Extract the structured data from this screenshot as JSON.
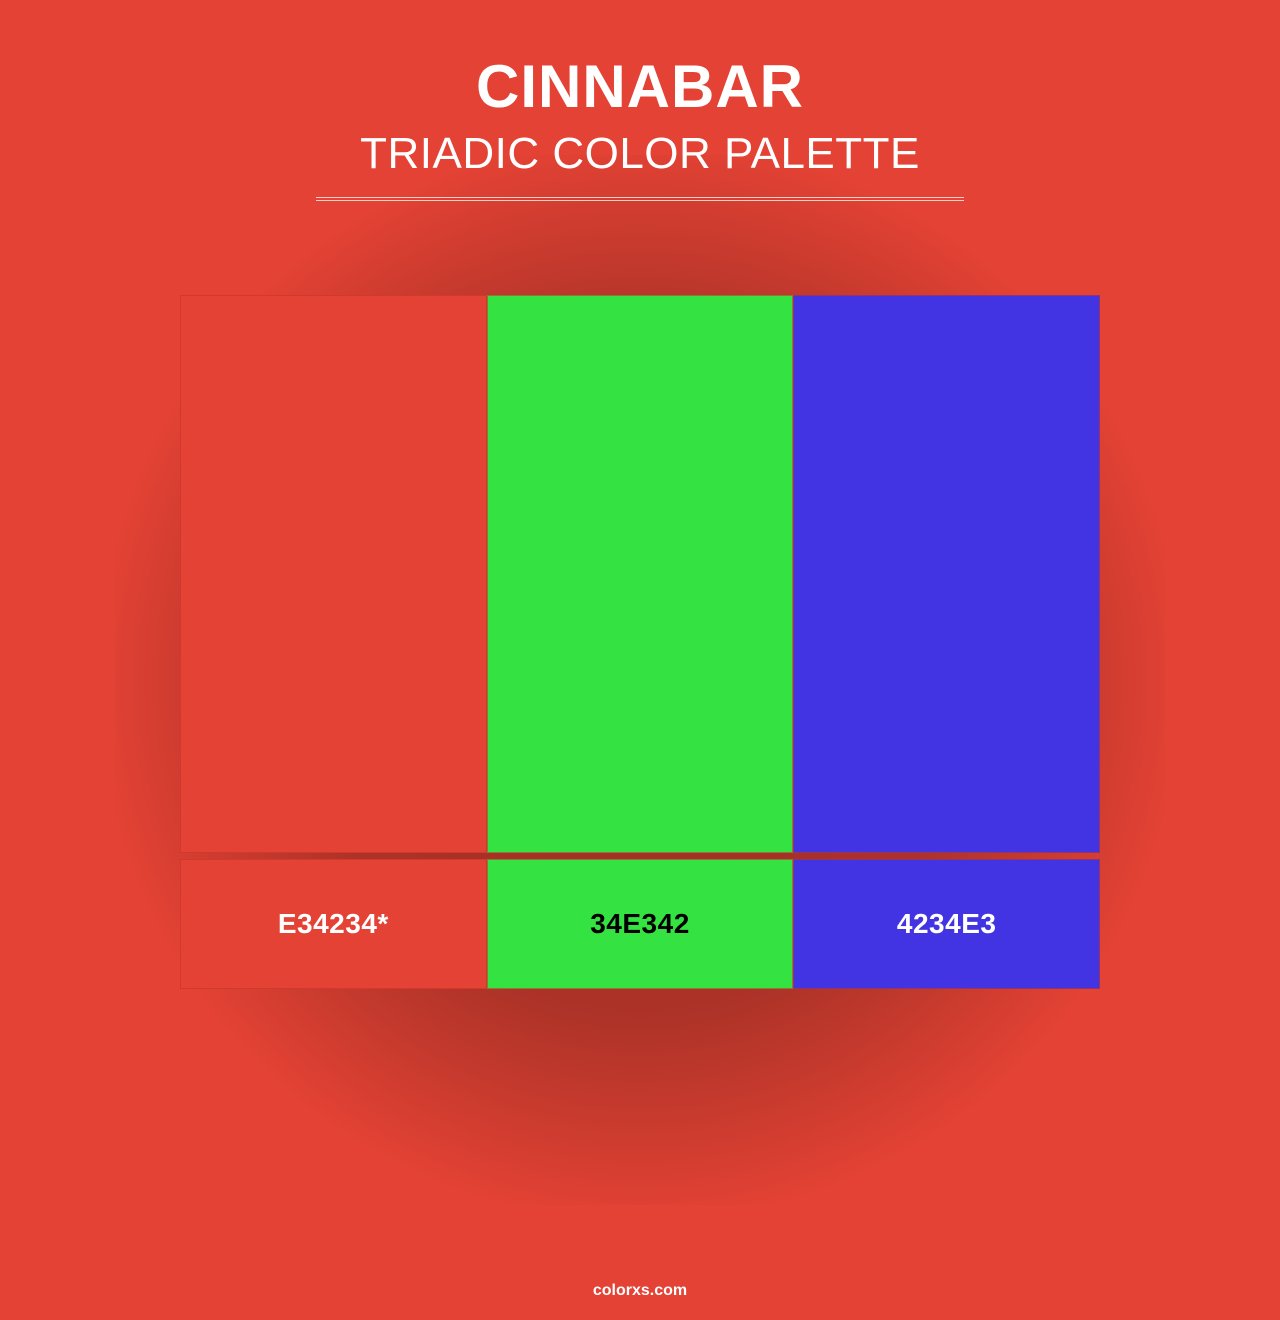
{
  "header": {
    "title": "CINNABAR",
    "subtitle": "TRIADIC COLOR PALETTE",
    "title_fontsize": 60,
    "subtitle_fontsize": 44,
    "text_color": "#ffffff",
    "divider_color": "rgba(255,255,255,0.75)",
    "divider_width": 648
  },
  "background_color": "#e34234",
  "palette": {
    "type": "color-swatches",
    "swatch_height": 558,
    "label_height": 130,
    "total_width": 920,
    "colors": [
      {
        "hex": "#e34234",
        "label": "E34234*",
        "label_text_color": "#ffffff"
      },
      {
        "hex": "#34e342",
        "label": "34E342",
        "label_text_color": "#000000"
      },
      {
        "hex": "#4234e3",
        "label": "4234E3",
        "label_text_color": "#ffffff"
      }
    ],
    "label_fontsize": 28,
    "cell_border_color": "rgba(200,50,40,0.6)"
  },
  "footer": {
    "text": "colorxs.com",
    "fontsize": 16,
    "text_color": "#ffffff"
  },
  "shadow": {
    "color": "rgba(0,0,0,0.3)",
    "size": 1050
  }
}
